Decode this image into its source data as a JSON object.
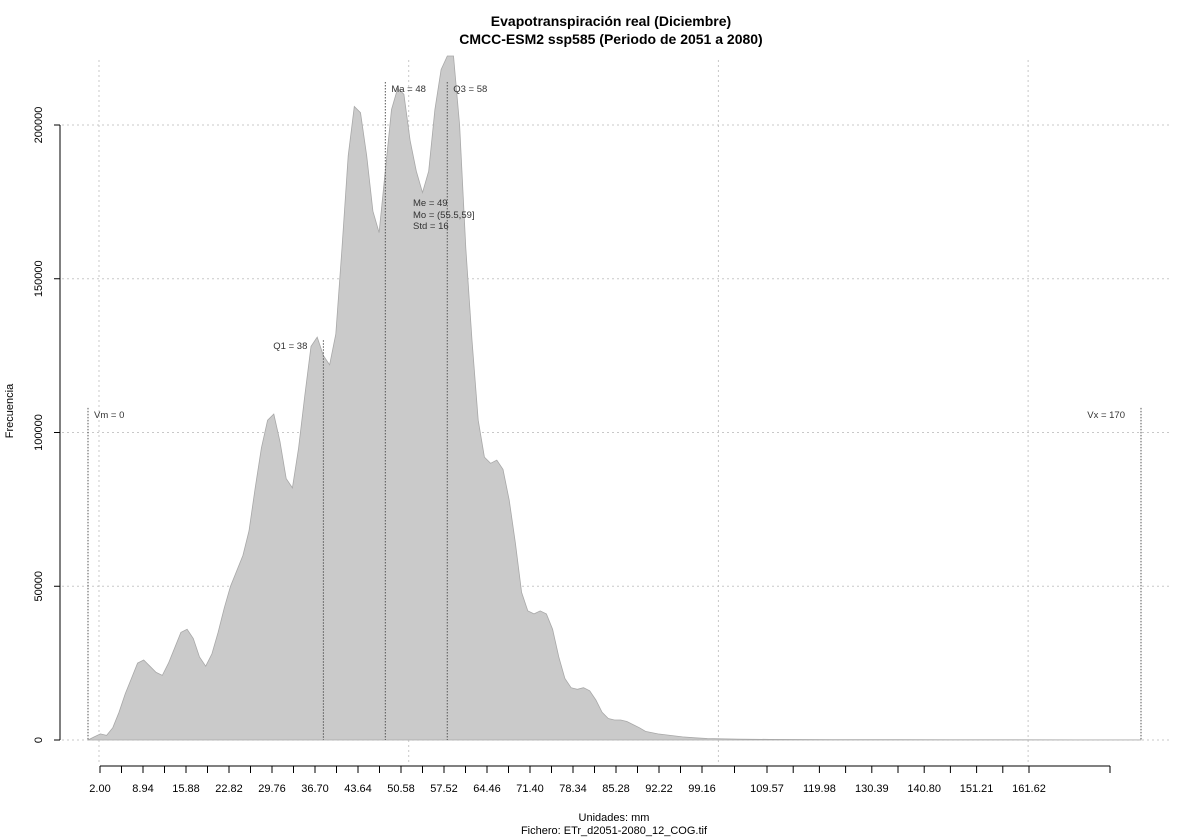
{
  "chart_data": {
    "type": "area",
    "title": "Evapotranspiración real (Diciembre)",
    "subtitle": "CMCC-ESM2 ssp585 (Periodo de 2051 a 2080)",
    "xlabel": "Unidades: mm",
    "ylabel": "Frecuencia",
    "footer": "Fichero: ETr_d2051-2080_12_COG.tif",
    "xlim": [
      0,
      170
    ],
    "ylim": [
      0,
      200000
    ],
    "grid": true,
    "x_ticks": [
      "2.00",
      "8.94",
      "15.88",
      "22.82",
      "29.76",
      "36.70",
      "43.64",
      "50.58",
      "57.52",
      "64.46",
      "71.40",
      "78.34",
      "85.28",
      "92.22",
      "99.16",
      "109.57",
      "119.98",
      "130.39",
      "140.80",
      "151.21",
      "161.62"
    ],
    "y_ticks": [
      "0",
      "50000",
      "100000",
      "150000",
      "200000"
    ],
    "series": [
      {
        "x": [
          0,
          1,
          2,
          3,
          4,
          5,
          6,
          7,
          8,
          9,
          10,
          11,
          12,
          13,
          14,
          15,
          16,
          17,
          18,
          19,
          20,
          21,
          22,
          23,
          24,
          25,
          26,
          27,
          28,
          29,
          30,
          31,
          32,
          33,
          34,
          35,
          36,
          37,
          38,
          39,
          40,
          41,
          42,
          43,
          44,
          45,
          46,
          47,
          48,
          49,
          50,
          51,
          52,
          53,
          54,
          55,
          56,
          57,
          58,
          59,
          60,
          61,
          62,
          63,
          64,
          65,
          66,
          67,
          68,
          69,
          70,
          71,
          72,
          73,
          74,
          75,
          76,
          77,
          78,
          79,
          80,
          81,
          82,
          83,
          84,
          85,
          86,
          87,
          88,
          89,
          90,
          92,
          94,
          96,
          98,
          100,
          105,
          110,
          115,
          120,
          130,
          140,
          150,
          160,
          170
        ],
        "values": [
          0,
          1000,
          2000,
          1500,
          4000,
          9000,
          15000,
          20000,
          25000,
          26000,
          24000,
          22000,
          21000,
          25000,
          30000,
          35000,
          36000,
          33000,
          27000,
          24000,
          28000,
          35000,
          43000,
          50000,
          55000,
          60000,
          68000,
          82000,
          95000,
          104000,
          106000,
          97000,
          85000,
          82000,
          95000,
          112000,
          128000,
          131000,
          125000,
          122000,
          132000,
          160000,
          190000,
          206000,
          204000,
          190000,
          172000,
          165000,
          185000,
          205000,
          212000,
          210000,
          195000,
          185000,
          178000,
          185000,
          205000,
          218000,
          226000,
          224000,
          200000,
          160000,
          130000,
          104000,
          92000,
          90000,
          91000,
          88000,
          78000,
          64000,
          48000,
          42000,
          41000,
          42000,
          41000,
          36000,
          27000,
          20000,
          17000,
          16500,
          17000,
          16000,
          13000,
          9000,
          7000,
          6500,
          6500,
          6000,
          5000,
          4000,
          2800,
          2000,
          1500,
          1000,
          700,
          500,
          300,
          200,
          150,
          120,
          100,
          80,
          60,
          40,
          20
        ]
      }
    ],
    "vlines": [
      {
        "label": "Vm = 0",
        "x": 0,
        "y": 108000
      },
      {
        "label": "Q1 = 38",
        "x": 38,
        "y": 130000
      },
      {
        "label": "Ma = 48",
        "x": 48,
        "y": 214000
      },
      {
        "label": "Q3 = 58",
        "x": 58,
        "y": 214000
      },
      {
        "label": "Vx = 170",
        "x": 170,
        "y": 108000
      }
    ],
    "stats": [
      "Me = 49",
      "Mo = (55.5,59]",
      "Std = 16"
    ]
  }
}
